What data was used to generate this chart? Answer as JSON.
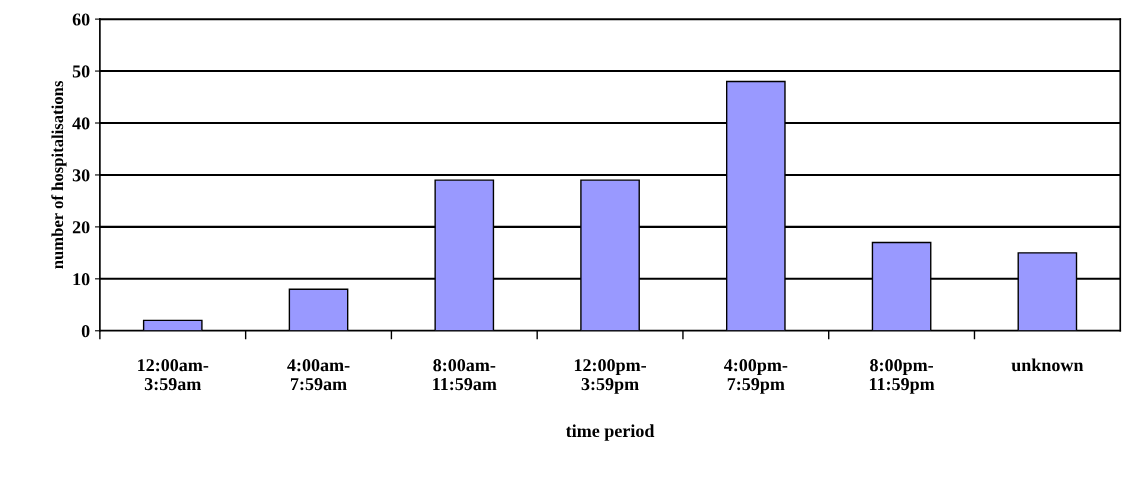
{
  "chart_data": {
    "type": "bar",
    "xlabel": "time period",
    "ylabel": "number of hospitalisations",
    "categories": [
      "12:00am-\n3:59am",
      "4:00am-\n7:59am",
      "8:00am-\n11:59am",
      "12:00pm-\n3:59pm",
      "4:00pm-\n7:59pm",
      "8:00pm-\n11:59pm",
      "unknown"
    ],
    "values": [
      2,
      8,
      29,
      29,
      48,
      17,
      15
    ],
    "color": "#9999ff",
    "ylim": [
      0,
      60
    ],
    "yticks": [
      0,
      10,
      20,
      30,
      40,
      50,
      60
    ],
    "grid": "y",
    "legend": false
  }
}
